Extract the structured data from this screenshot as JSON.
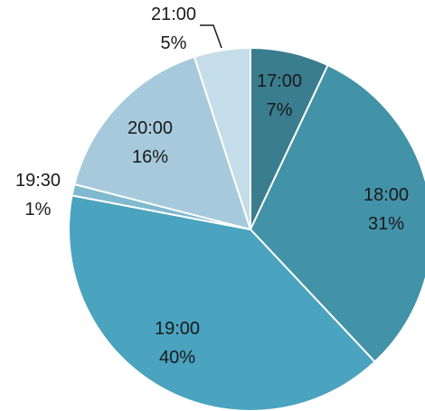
{
  "chart_data": {
    "type": "pie",
    "title": "",
    "categories": [
      "17:00",
      "18:00",
      "19:00",
      "19:30",
      "20:00",
      "21:00"
    ],
    "values": [
      7,
      31,
      40,
      1,
      16,
      5
    ],
    "percent_labels": [
      "7%",
      "31%",
      "40%",
      "1%",
      "16%",
      "5%"
    ],
    "colors": [
      "#3a7d8e",
      "#4292a8",
      "#4aa3bf",
      "#7fb9cf",
      "#a6cadb",
      "#c5dde8"
    ],
    "legend": "none",
    "start_angle_deg": 0,
    "direction": "clockwise"
  }
}
